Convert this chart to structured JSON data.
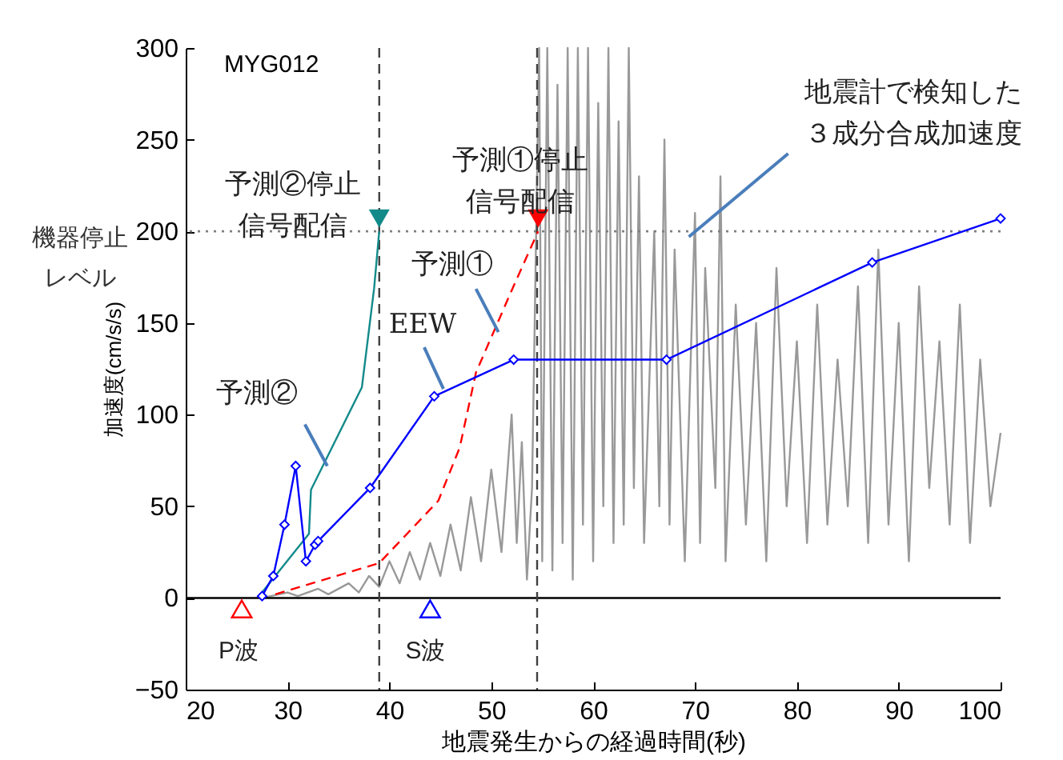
{
  "chart_data": {
    "type": "line",
    "xlabel": "地震発生からの経過時間(秒)",
    "ylabel": "加速度(cm/s/s)",
    "xlim": [
      20,
      100
    ],
    "xticks": [
      20,
      30,
      40,
      50,
      60,
      70,
      80,
      90,
      100
    ],
    "ylim": [
      -50,
      300
    ],
    "yticks": [
      -50,
      0,
      50,
      100,
      150,
      200,
      250,
      300
    ],
    "grid": false,
    "series": [
      {
        "color": "#999999",
        "x": [
          27.5,
          30,
          31,
          33,
          34,
          36,
          37,
          38,
          39,
          40,
          41,
          42,
          43,
          44,
          45,
          46,
          47,
          48,
          49,
          50,
          51,
          52,
          52.5,
          53,
          53.5,
          54,
          54.7,
          55,
          55.5,
          56,
          56.5,
          57,
          57.5,
          58,
          58.5,
          59,
          59.5,
          60,
          60.5,
          61,
          61.5,
          62,
          62.5,
          63,
          63.5,
          64,
          64.5,
          65,
          66,
          66.5,
          67,
          67.5,
          68,
          69,
          70,
          70.5,
          71,
          72,
          72.5,
          73,
          74,
          75,
          76,
          77,
          78,
          79,
          80,
          81,
          82,
          83,
          84,
          85,
          86,
          87,
          88,
          89,
          90,
          91,
          92,
          93,
          94,
          95,
          96,
          97,
          98,
          99,
          100
        ],
        "values": [
          0,
          3,
          1,
          5,
          2,
          8,
          3,
          12,
          6,
          20,
          8,
          25,
          10,
          30,
          12,
          40,
          15,
          55,
          20,
          70,
          25,
          100,
          30,
          85,
          10,
          60,
          300,
          20,
          300,
          15,
          280,
          30,
          300,
          10,
          300,
          40,
          300,
          20,
          270,
          50,
          300,
          30,
          260,
          40,
          300,
          60,
          230,
          30,
          200,
          50,
          250,
          40,
          190,
          20,
          210,
          30,
          180,
          60,
          230,
          20,
          160,
          40,
          150,
          20,
          180,
          50,
          140,
          30,
          160,
          40,
          130,
          50,
          170,
          30,
          190,
          40,
          150,
          20,
          170,
          60,
          140,
          40,
          160,
          30,
          130,
          50,
          90
        ]
      },
      {
        "color": "#138a8a",
        "x": [
          27.2,
          32.1,
          32.3,
          37.3,
          38.5,
          39
        ],
        "values": [
          1,
          35,
          59,
          115,
          169,
          200
        ]
      },
      {
        "color": "#ff0000",
        "line_style": "dashed",
        "x": [
          28.8,
          39,
          44.8,
          46.9,
          48.5,
          52.1,
          54.6
        ],
        "values": [
          2,
          19,
          53,
          82,
          123,
          169,
          200
        ]
      },
      {
        "color": "#0000ff",
        "marker": "diamond",
        "x": [
          27.5,
          28.6,
          29.7,
          30.8,
          31.8,
          32.7,
          33,
          38.1,
          44.4,
          52.2,
          67.2,
          87.4,
          100
        ],
        "values": [
          1,
          12,
          40,
          72,
          20,
          29,
          31,
          60,
          110,
          130,
          130,
          183,
          207
        ]
      },
      {
        "type": "scatter",
        "marker": "triangle",
        "color": "#138a8a",
        "x": [
          39
        ],
        "values": [
          207
        ]
      },
      {
        "type": "scatter",
        "marker": "triangle",
        "color": "#ff0000",
        "x": [
          54.6
        ],
        "values": [
          207
        ]
      },
      {
        "type": "scatter",
        "marker": "triangle",
        "color": "#ff0000",
        "x": [
          25.5
        ],
        "values": [
          -6
        ]
      },
      {
        "type": "scatter",
        "marker": "triangle",
        "color": "#0000ff",
        "x": [
          44
        ],
        "values": [
          -6
        ]
      }
    ],
    "ref_lines": [
      {
        "axis": "y",
        "value": 0,
        "color": "#000000",
        "line_style": "solid"
      },
      {
        "axis": "y",
        "value": 200,
        "label": "機器停止レベル",
        "color": "#808080",
        "line_style": "dotted"
      },
      {
        "axis": "x",
        "value": 39,
        "color": "#404040",
        "line_style": "dashed"
      },
      {
        "axis": "x",
        "value": 54.5,
        "color": "#404040",
        "line_style": "dashed"
      }
    ],
    "annotations": [
      "MYG012",
      {
        "text": "地震計で検知した３成分合成加速度",
        "x": 69.4,
        "y": 197
      },
      {
        "text": "予測①停止信号配信",
        "x": 54.6,
        "y": 207
      },
      {
        "text": "予測②停止信号配信",
        "x": 39,
        "y": 207
      },
      {
        "text": "予測①",
        "x": 50.7,
        "y": 145
      },
      {
        "text": "EEW",
        "x": 45.3,
        "y": 114
      },
      {
        "text": "予測②",
        "x": 33.9,
        "y": 72
      },
      {
        "text": "P波",
        "x": 25.5,
        "y": -6
      },
      {
        "text": "S波",
        "x": 44,
        "y": -6
      }
    ]
  }
}
